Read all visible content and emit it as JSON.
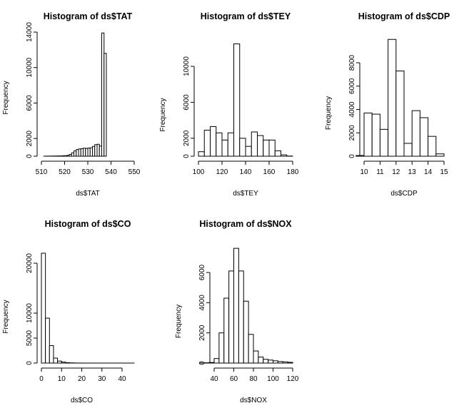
{
  "chart_data": [
    {
      "type": "bar",
      "title": "Histogram of ds$TAT",
      "xlabel": "ds$TAT",
      "ylabel": "Frequency",
      "xlim": [
        511.04,
        550.61
      ],
      "ylim": [
        0,
        14000
      ],
      "xticks": [
        510,
        520,
        530,
        540,
        550
      ],
      "yticks": [
        0,
        2000,
        6000,
        10000,
        14000
      ],
      "bins": [
        [
          511,
          512,
          5
        ],
        [
          512,
          513,
          10
        ],
        [
          513,
          514,
          10
        ],
        [
          514,
          515,
          15
        ],
        [
          515,
          516,
          20
        ],
        [
          516,
          517,
          25
        ],
        [
          517,
          518,
          30
        ],
        [
          518,
          519,
          35
        ],
        [
          519,
          520,
          50
        ],
        [
          520,
          521,
          60
        ],
        [
          521,
          522,
          100
        ],
        [
          522,
          523,
          200
        ],
        [
          523,
          524,
          380
        ],
        [
          524,
          525,
          600
        ],
        [
          525,
          526,
          750
        ],
        [
          526,
          527,
          820
        ],
        [
          527,
          528,
          850
        ],
        [
          528,
          529,
          900
        ],
        [
          529,
          530,
          880
        ],
        [
          530,
          531,
          920
        ],
        [
          531,
          532,
          950
        ],
        [
          532,
          533,
          1100
        ],
        [
          533,
          534,
          1300
        ],
        [
          534,
          535,
          1350
        ],
        [
          535,
          536,
          1150
        ],
        [
          536,
          537,
          13900
        ],
        [
          537,
          538,
          11600
        ]
      ]
    },
    {
      "type": "bar",
      "title": "Histogram of ds$TEY",
      "xlabel": "ds$TEY",
      "ylabel": "Frequency",
      "xlim": [
        100.02,
        179.5
      ],
      "ylim": [
        0,
        12500
      ],
      "xticks": [
        100,
        120,
        140,
        160,
        180
      ],
      "yticks": [
        0,
        2000,
        6000,
        10000
      ],
      "bins": [
        [
          100,
          105,
          500
        ],
        [
          105,
          110,
          2900
        ],
        [
          110,
          115,
          3300
        ],
        [
          115,
          120,
          2600
        ],
        [
          120,
          125,
          1800
        ],
        [
          125,
          130,
          2600
        ],
        [
          130,
          135,
          12500
        ],
        [
          135,
          140,
          2000
        ],
        [
          140,
          145,
          1100
        ],
        [
          145,
          150,
          2700
        ],
        [
          150,
          155,
          2300
        ],
        [
          155,
          160,
          1800
        ],
        [
          160,
          165,
          1800
        ],
        [
          165,
          170,
          600
        ],
        [
          170,
          175,
          150
        ],
        [
          175,
          180,
          20
        ]
      ]
    },
    {
      "type": "bar",
      "title": "Histogram of ds$CDP",
      "xlabel": "ds$CDP",
      "ylabel": "Frequency",
      "xlim": [
        9.8518,
        15.159
      ],
      "ylim": [
        0,
        10000
      ],
      "xticks": [
        10,
        11,
        12,
        13,
        14,
        15
      ],
      "yticks": [
        0,
        2000,
        4000,
        6000,
        8000
      ],
      "bins": [
        [
          9.5,
          10,
          60
        ],
        [
          10,
          10.5,
          3700
        ],
        [
          10.5,
          11,
          3600
        ],
        [
          11,
          11.5,
          2300
        ],
        [
          11.5,
          12,
          10000
        ],
        [
          12,
          12.5,
          7300
        ],
        [
          12.5,
          13,
          1100
        ],
        [
          13,
          13.5,
          3900
        ],
        [
          13.5,
          14,
          3300
        ],
        [
          14,
          14.5,
          1700
        ],
        [
          14.5,
          15,
          200
        ]
      ]
    },
    {
      "type": "bar",
      "title": "Histogram of ds$CO",
      "xlabel": "ds$CO",
      "ylabel": "Frequency",
      "xlim": [
        0.0009,
        44.103
      ],
      "ylim": [
        0,
        22000
      ],
      "xticks": [
        0,
        10,
        20,
        30,
        40
      ],
      "yticks": [
        0,
        5000,
        10000,
        20000
      ],
      "bins": [
        [
          0,
          2,
          22000
        ],
        [
          2,
          4,
          9000
        ],
        [
          4,
          6,
          3500
        ],
        [
          6,
          8,
          1000
        ],
        [
          8,
          10,
          400
        ],
        [
          10,
          12,
          200
        ],
        [
          12,
          14,
          80
        ],
        [
          14,
          16,
          40
        ],
        [
          16,
          18,
          20
        ],
        [
          18,
          20,
          10
        ],
        [
          20,
          22,
          5
        ],
        [
          22,
          24,
          5
        ],
        [
          24,
          26,
          3
        ],
        [
          26,
          28,
          3
        ],
        [
          28,
          30,
          2
        ],
        [
          30,
          32,
          2
        ],
        [
          32,
          34,
          1
        ],
        [
          34,
          36,
          1
        ],
        [
          36,
          38,
          1
        ],
        [
          38,
          40,
          1
        ],
        [
          40,
          42,
          1
        ],
        [
          42,
          44,
          1
        ],
        [
          44,
          46,
          1
        ]
      ]
    },
    {
      "type": "bar",
      "title": "Histogram of ds$NOX",
      "xlabel": "ds$NOX",
      "ylabel": "Frequency",
      "xlim": [
        25.905,
        119.91
      ],
      "ylim": [
        0,
        7600
      ],
      "xticks": [
        40,
        60,
        80,
        100,
        120
      ],
      "yticks": [
        0,
        2000,
        4000,
        6000
      ],
      "bins": [
        [
          25,
          30,
          5
        ],
        [
          30,
          35,
          20
        ],
        [
          35,
          40,
          40
        ],
        [
          40,
          45,
          300
        ],
        [
          45,
          50,
          2000
        ],
        [
          50,
          55,
          4300
        ],
        [
          55,
          60,
          6100
        ],
        [
          60,
          65,
          7600
        ],
        [
          65,
          70,
          6100
        ],
        [
          70,
          75,
          4100
        ],
        [
          75,
          80,
          1900
        ],
        [
          80,
          85,
          800
        ],
        [
          85,
          90,
          400
        ],
        [
          90,
          95,
          250
        ],
        [
          95,
          100,
          200
        ],
        [
          100,
          105,
          150
        ],
        [
          105,
          110,
          100
        ],
        [
          110,
          115,
          80
        ],
        [
          115,
          120,
          50
        ]
      ]
    }
  ]
}
